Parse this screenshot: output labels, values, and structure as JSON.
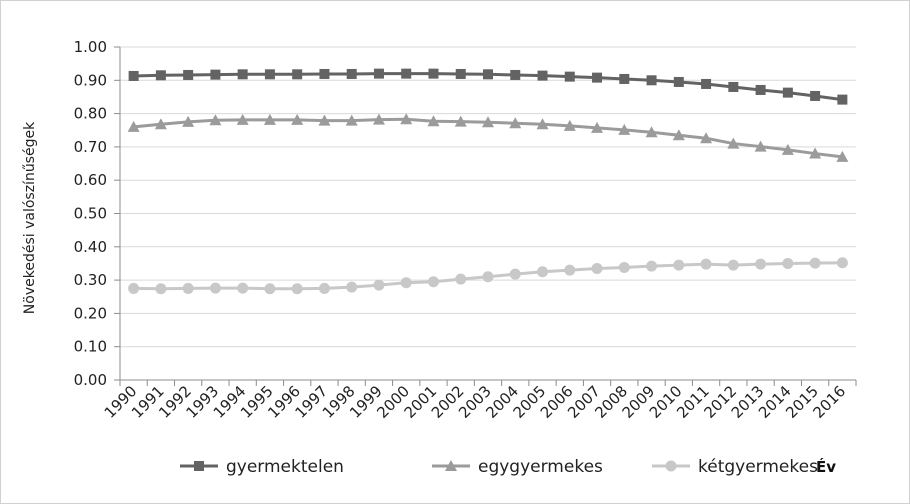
{
  "chart_data": {
    "type": "line",
    "ylabel": "Növekedési valószínűségek",
    "corner_label": "Év",
    "ylim": [
      0,
      1
    ],
    "y_ticks": [
      "0.00",
      "0.10",
      "0.20",
      "0.30",
      "0.40",
      "0.50",
      "0.60",
      "0.70",
      "0.80",
      "0.90",
      "1.00"
    ],
    "categories": [
      "1990",
      "1991",
      "1992",
      "1993",
      "1994",
      "1995",
      "1996",
      "1997",
      "1998",
      "1999",
      "2000",
      "2001",
      "2002",
      "2003",
      "2004",
      "2005",
      "2006",
      "2007",
      "2008",
      "2009",
      "2010",
      "2011",
      "2012",
      "2013",
      "2014",
      "2015",
      "2016"
    ],
    "grid": true,
    "legend_position": "bottom",
    "series": [
      {
        "name": "gyermektelen",
        "marker": "square",
        "color": "#636363",
        "values": [
          0.913,
          0.915,
          0.916,
          0.917,
          0.918,
          0.918,
          0.918,
          0.919,
          0.919,
          0.92,
          0.92,
          0.92,
          0.919,
          0.918,
          0.916,
          0.914,
          0.911,
          0.908,
          0.904,
          0.9,
          0.895,
          0.889,
          0.88,
          0.871,
          0.863,
          0.853,
          0.842
        ]
      },
      {
        "name": "egygyermekes",
        "marker": "triangle",
        "color": "#9b9b9b",
        "values": [
          0.76,
          0.768,
          0.775,
          0.78,
          0.781,
          0.781,
          0.781,
          0.779,
          0.779,
          0.782,
          0.783,
          0.777,
          0.776,
          0.774,
          0.771,
          0.768,
          0.763,
          0.757,
          0.751,
          0.744,
          0.735,
          0.726,
          0.71,
          0.701,
          0.691,
          0.68,
          0.67
        ]
      },
      {
        "name": "kétgyermekes",
        "marker": "circle",
        "color": "#c8c8c8",
        "values": [
          0.275,
          0.274,
          0.275,
          0.276,
          0.276,
          0.274,
          0.274,
          0.275,
          0.279,
          0.285,
          0.292,
          0.295,
          0.303,
          0.31,
          0.318,
          0.325,
          0.33,
          0.335,
          0.338,
          0.342,
          0.345,
          0.348,
          0.345,
          0.348,
          0.35,
          0.351,
          0.352
        ]
      }
    ]
  }
}
